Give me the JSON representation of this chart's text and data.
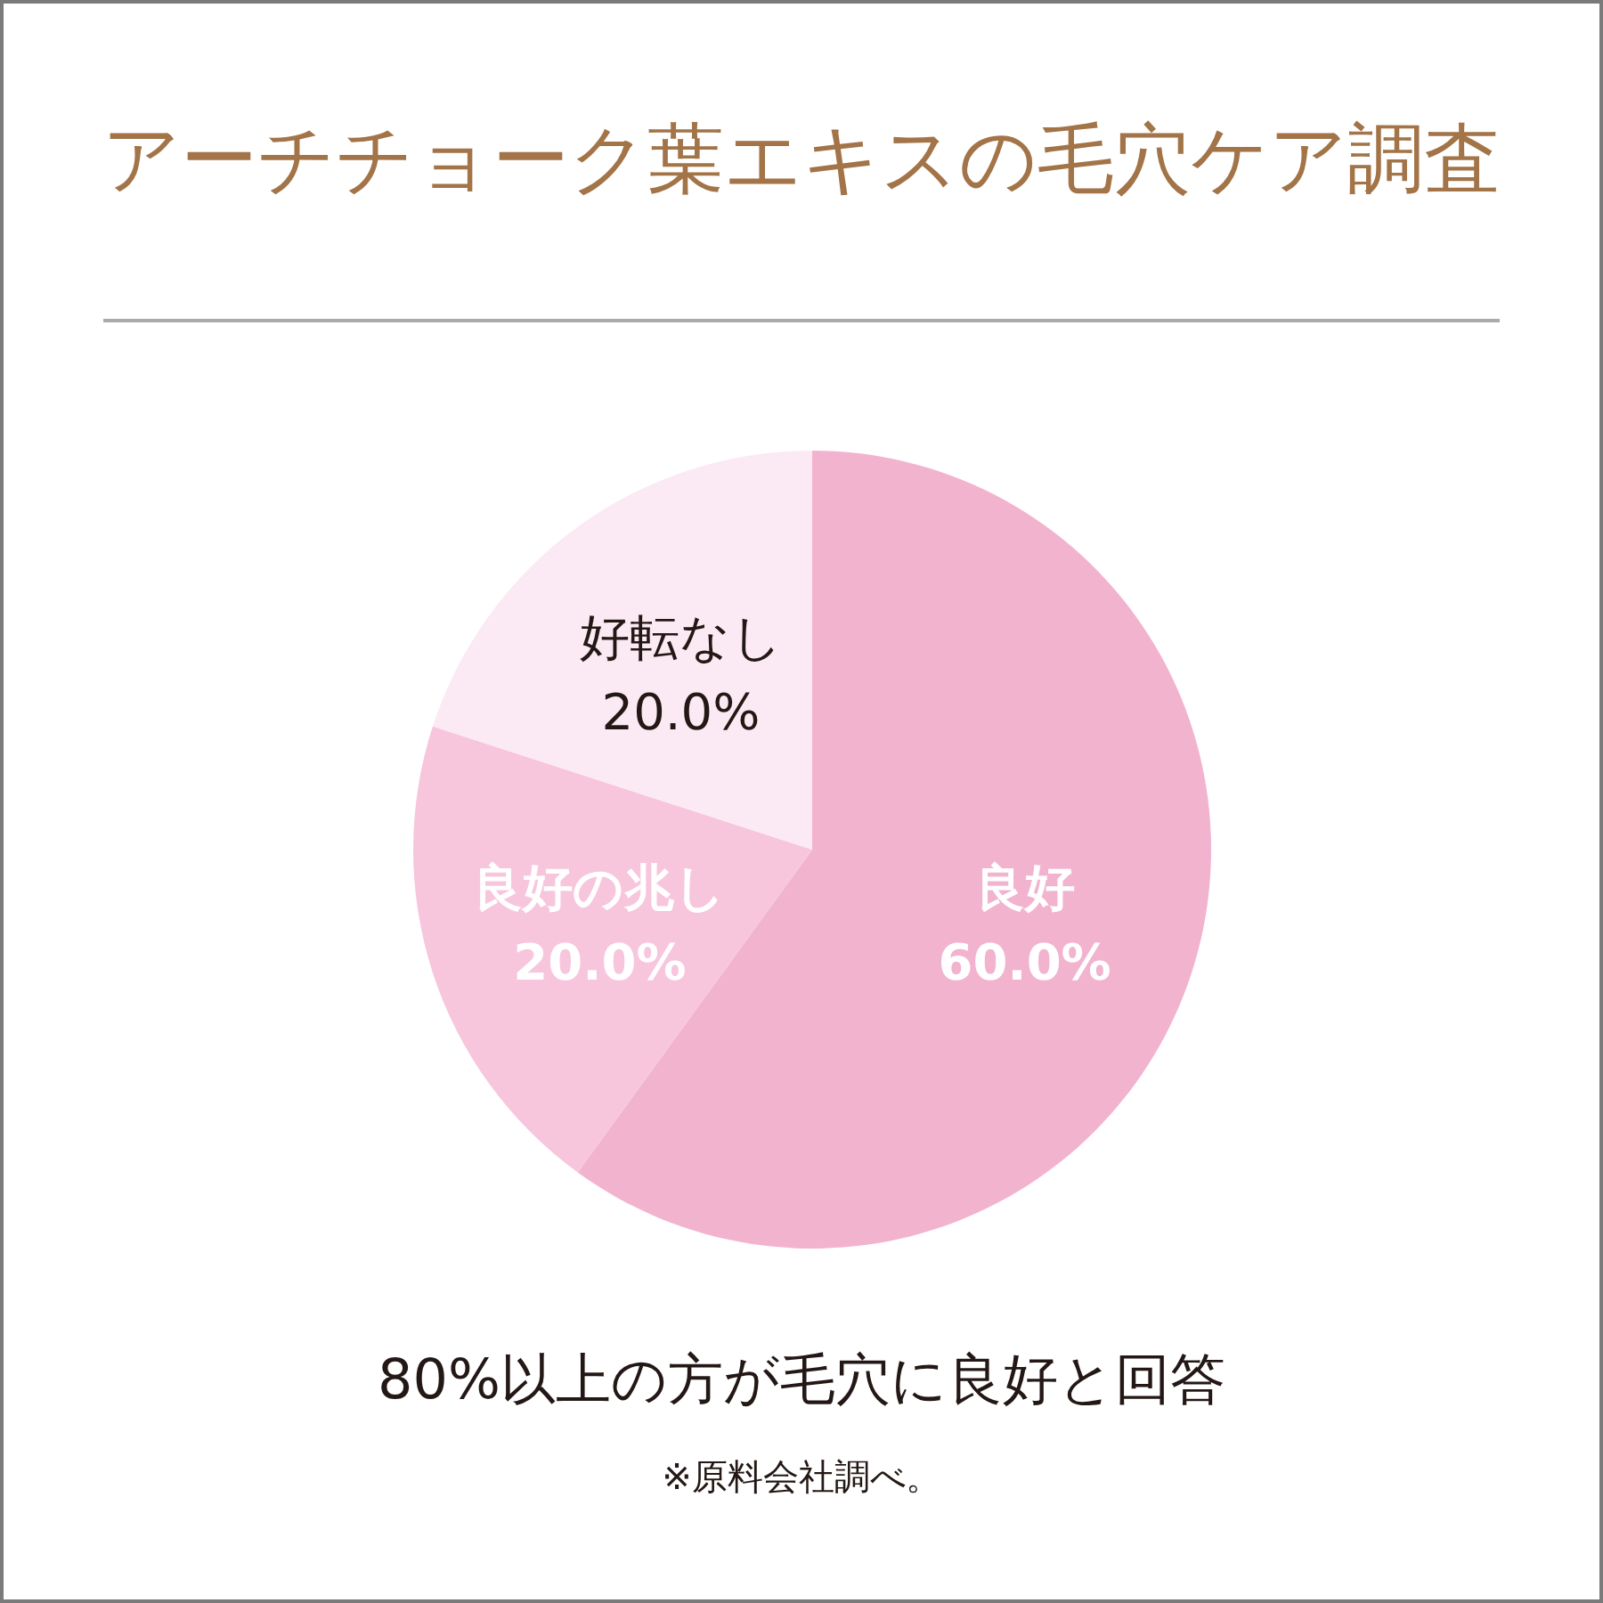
{
  "chart_data": {
    "type": "pie",
    "title": "アーチチョーク葉エキスの毛穴ケア調査",
    "subtitle": "80%以上の方が毛穴に良好と回答",
    "annotations": [
      "※原料会社調べ。"
    ],
    "categories": [
      "良好",
      "良好の兆し",
      "好転なし"
    ],
    "values": [
      60,
      20,
      20
    ],
    "colors": [
      "#f2b3cf",
      "#f7c6dd",
      "#fbeaf3"
    ],
    "value_labels": [
      "60.0%",
      "20.0%",
      "20.0%"
    ]
  }
}
